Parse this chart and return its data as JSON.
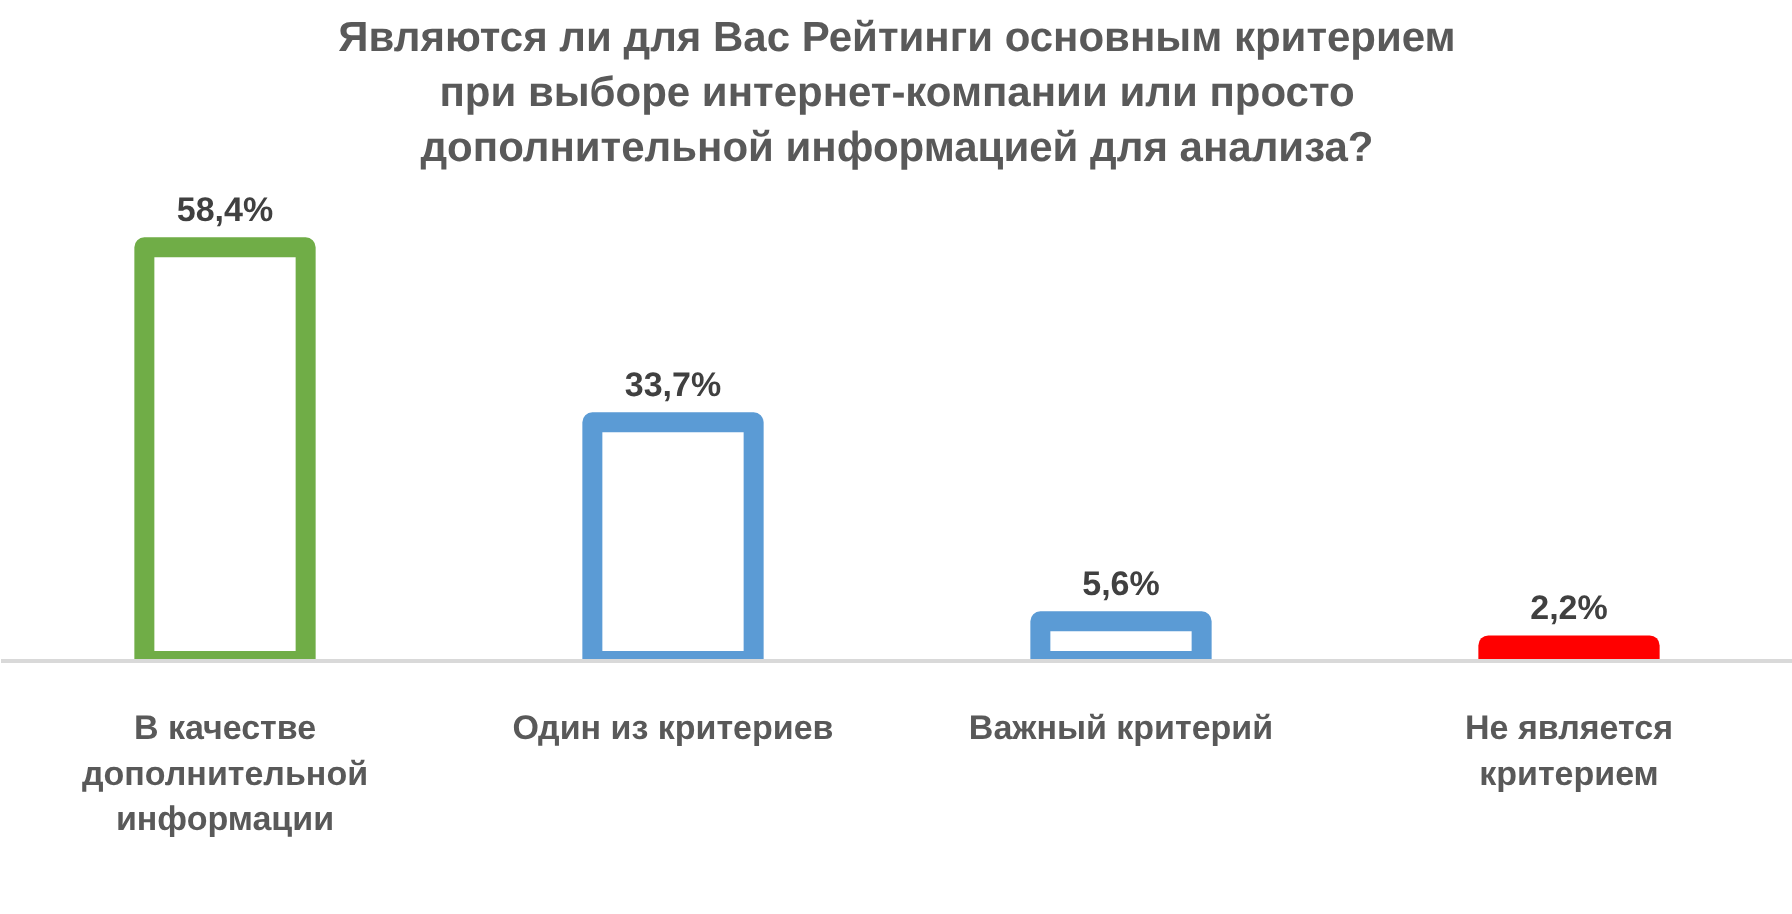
{
  "chart_data": {
    "type": "bar",
    "title": "Являются ли для Вас Рейтинги основным критерием при выборе интернет-компании или просто дополнительной информацией для анализа?",
    "categories": [
      "В качестве дополнительной информации",
      "Один из критериев",
      "Важный критерий",
      "Не является критерием"
    ],
    "values": [
      58.4,
      33.7,
      5.6,
      2.2
    ],
    "value_labels": [
      "58,4%",
      "33,7%",
      "5,6%",
      "2,2%"
    ],
    "colors": [
      "#70ad47",
      "#5b9bd5",
      "#5b9bd5",
      "#ff0000"
    ]
  }
}
